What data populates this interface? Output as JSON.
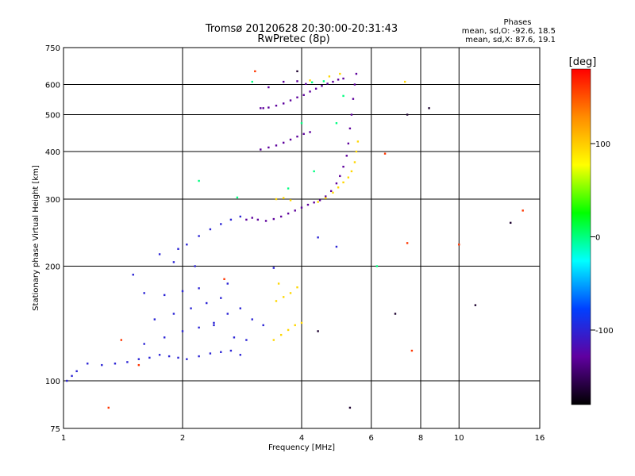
{
  "chart_data": {
    "type": "scatter",
    "title": "Tromsø 20120628 20:30:00-20:31:43",
    "subtitle": "RwPretec (8p)",
    "xlabel": "Frequency [MHz]",
    "ylabel": "Stationary phase Virtual Height [km]",
    "x_scale": "log",
    "y_scale": "log",
    "xlim": [
      1,
      16
    ],
    "ylim": [
      75,
      750
    ],
    "x_ticks": [
      1,
      2,
      4,
      6,
      8,
      10,
      16
    ],
    "y_ticks": [
      75,
      100,
      200,
      300,
      400,
      500,
      600,
      750
    ],
    "x_grid": [
      2,
      4,
      6,
      8,
      10
    ],
    "y_grid": [
      100,
      200,
      300,
      400,
      500,
      600
    ],
    "grid": true,
    "stats_header": "Phases",
    "stats_o": "mean, sd,O: -92.6, 18.5",
    "stats_x": "mean, sd,X:  87.6, 19.1",
    "colorbar": {
      "label": "[deg]",
      "range": [
        -180,
        180
      ],
      "ticks": [
        100,
        0,
        -100
      ],
      "colors": [
        "#ff0000",
        "#ff8c00",
        "#ffff00",
        "#00ff00",
        "#00ffff",
        "#0040ff",
        "#6000a0",
        "#000000"
      ]
    },
    "series": [
      {
        "points": [
          [
            3.15,
            520
          ],
          [
            3.3,
            522
          ],
          [
            3.45,
            528
          ],
          [
            3.6,
            535
          ],
          [
            3.75,
            545
          ],
          [
            3.9,
            555
          ],
          [
            4.05,
            563
          ],
          [
            4.2,
            575
          ],
          [
            4.35,
            585
          ],
          [
            4.5,
            595
          ],
          [
            4.65,
            603
          ],
          [
            4.8,
            610
          ],
          [
            4.95,
            618
          ],
          [
            5.1,
            622
          ],
          [
            3.15,
            405
          ],
          [
            3.3,
            410
          ],
          [
            3.45,
            415
          ],
          [
            3.6,
            422
          ],
          [
            3.75,
            430
          ],
          [
            3.9,
            438
          ],
          [
            4.05,
            445
          ],
          [
            4.2,
            450
          ],
          [
            3.1,
            265
          ],
          [
            3.25,
            263
          ],
          [
            3.4,
            266
          ],
          [
            3.55,
            270
          ],
          [
            3.7,
            275
          ],
          [
            3.85,
            280
          ],
          [
            4.0,
            285
          ],
          [
            4.15,
            290
          ],
          [
            4.3,
            294
          ],
          [
            4.45,
            298
          ],
          [
            4.6,
            305
          ],
          [
            4.75,
            315
          ],
          [
            4.9,
            330
          ],
          [
            5.0,
            345
          ],
          [
            5.1,
            365
          ],
          [
            5.2,
            390
          ],
          [
            5.25,
            420
          ],
          [
            5.3,
            460
          ],
          [
            5.35,
            500
          ],
          [
            5.4,
            550
          ],
          [
            5.45,
            600
          ],
          [
            5.5,
            640
          ],
          [
            2.9,
            265
          ],
          [
            3.0,
            268
          ],
          [
            3.2,
            520
          ],
          [
            3.3,
            590
          ],
          [
            3.6,
            610
          ],
          [
            3.9,
            612
          ],
          [
            4.1,
            602
          ]
        ],
        "phase": -130
      },
      {
        "points": [
          [
            1.02,
            100
          ],
          [
            1.05,
            103
          ],
          [
            1.08,
            106
          ],
          [
            1.15,
            111
          ],
          [
            1.25,
            110
          ],
          [
            1.35,
            111
          ],
          [
            1.45,
            112
          ],
          [
            1.55,
            114
          ],
          [
            1.65,
            115
          ],
          [
            1.75,
            117
          ],
          [
            1.85,
            116
          ],
          [
            1.95,
            115
          ],
          [
            2.05,
            114
          ],
          [
            2.2,
            116
          ],
          [
            2.35,
            118
          ],
          [
            2.5,
            119
          ],
          [
            2.65,
            120
          ],
          [
            2.8,
            117
          ],
          [
            1.6,
            125
          ],
          [
            1.8,
            130
          ],
          [
            2.0,
            135
          ],
          [
            2.2,
            138
          ],
          [
            2.4,
            142
          ],
          [
            1.7,
            145
          ],
          [
            1.9,
            150
          ],
          [
            2.1,
            155
          ],
          [
            2.3,
            160
          ],
          [
            2.5,
            165
          ],
          [
            1.6,
            170
          ],
          [
            1.8,
            168
          ],
          [
            2.0,
            172
          ],
          [
            2.2,
            175
          ],
          [
            2.4,
            140
          ],
          [
            2.6,
            150
          ],
          [
            2.8,
            155
          ],
          [
            3.0,
            145
          ],
          [
            3.2,
            140
          ],
          [
            2.7,
            130
          ],
          [
            2.9,
            128
          ],
          [
            1.75,
            215
          ],
          [
            1.95,
            222
          ],
          [
            2.05,
            228
          ],
          [
            2.2,
            240
          ],
          [
            2.35,
            250
          ],
          [
            2.5,
            258
          ],
          [
            2.65,
            265
          ],
          [
            2.8,
            270
          ],
          [
            1.5,
            190
          ],
          [
            1.9,
            205
          ],
          [
            2.15,
            200
          ],
          [
            2.6,
            180
          ],
          [
            3.4,
            198
          ],
          [
            4.4,
            238
          ],
          [
            4.9,
            225
          ]
        ],
        "phase": -100
      },
      {
        "points": [
          [
            3.4,
            128
          ],
          [
            3.55,
            132
          ],
          [
            3.7,
            136
          ],
          [
            3.85,
            140
          ],
          [
            4.0,
            142
          ],
          [
            3.45,
            162
          ],
          [
            3.6,
            166
          ],
          [
            3.75,
            170
          ],
          [
            3.9,
            176
          ],
          [
            3.5,
            180
          ],
          [
            4.4,
            295
          ],
          [
            4.6,
            302
          ],
          [
            4.8,
            312
          ],
          [
            4.95,
            322
          ],
          [
            5.1,
            332
          ],
          [
            5.25,
            342
          ],
          [
            5.35,
            355
          ],
          [
            5.45,
            375
          ],
          [
            5.5,
            400
          ],
          [
            5.55,
            425
          ],
          [
            3.45,
            300
          ],
          [
            3.6,
            302
          ],
          [
            3.75,
            298
          ],
          [
            5.0,
            640
          ],
          [
            4.7,
            630
          ],
          [
            4.2,
            615
          ],
          [
            7.3,
            610
          ]
        ],
        "phase": 95
      },
      {
        "points": [
          [
            3.0,
            610
          ],
          [
            4.25,
            608
          ],
          [
            4.55,
            612
          ],
          [
            4.3,
            355
          ],
          [
            4.9,
            475
          ],
          [
            5.1,
            560
          ],
          [
            6.2,
            200
          ],
          [
            4.0,
            475
          ],
          [
            3.7,
            320
          ],
          [
            2.2,
            335
          ],
          [
            2.75,
            303
          ]
        ],
        "phase": 0
      },
      {
        "points": [
          [
            1.4,
            128
          ],
          [
            1.3,
            85
          ],
          [
            1.55,
            110
          ],
          [
            2.55,
            185
          ],
          [
            6.5,
            395
          ],
          [
            7.4,
            230
          ],
          [
            7.6,
            120
          ],
          [
            10.0,
            228
          ],
          [
            14.5,
            280
          ],
          [
            3.05,
            650
          ]
        ],
        "phase": 160
      },
      {
        "points": [
          [
            7.4,
            500
          ],
          [
            8.4,
            520
          ],
          [
            11.0,
            158
          ],
          [
            13.5,
            260
          ],
          [
            3.9,
            650
          ],
          [
            4.4,
            135
          ],
          [
            5.3,
            85
          ],
          [
            6.9,
            150
          ]
        ],
        "phase": -165
      }
    ]
  }
}
